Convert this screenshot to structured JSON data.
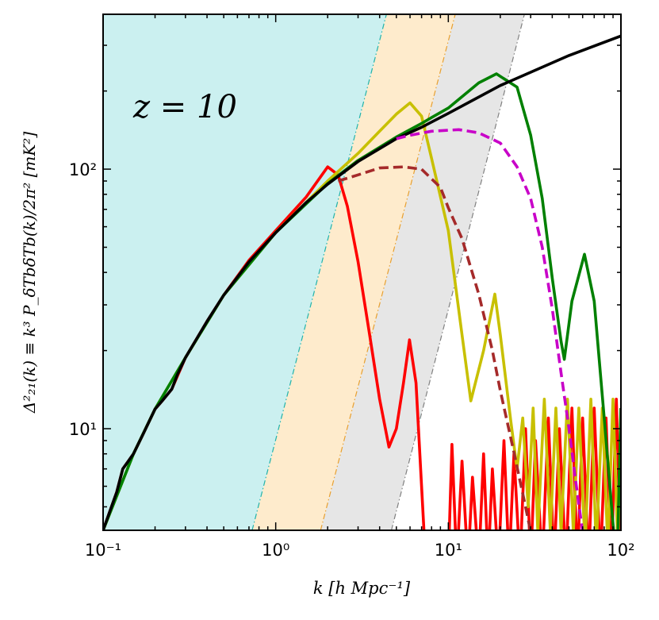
{
  "chart_data": {
    "type": "line",
    "annotation": "z = 10",
    "xlabel": "k [h Mpc⁻¹]",
    "ylabel": "Δ²₂₁(k) ≡ k³ P_δTbδTb(k)/2π² [mK²]",
    "xscale": "log",
    "yscale": "log",
    "xlim": [
      0.1,
      100
    ],
    "ylim": [
      4.06,
      395
    ],
    "xticks": [
      {
        "value": 0.1,
        "label": "10⁻¹"
      },
      {
        "value": 1,
        "label": "10⁰"
      },
      {
        "value": 10,
        "label": "10¹"
      },
      {
        "value": 100,
        "label": "10²"
      }
    ],
    "yticks": [
      {
        "value": 10,
        "label": "10¹"
      },
      {
        "value": 100,
        "label": "10²"
      }
    ],
    "xminor_ticks": [
      0.2,
      0.3,
      0.4,
      0.5,
      0.6,
      0.7,
      0.8,
      0.9,
      2,
      3,
      4,
      5,
      6,
      7,
      8,
      9,
      20,
      30,
      40,
      50,
      60,
      70,
      80,
      90
    ],
    "yminor_ticks": [
      5,
      6,
      7,
      8,
      9,
      20,
      30,
      40,
      50,
      60,
      70,
      80,
      90,
      200,
      300
    ],
    "shaded_regions": [
      {
        "color": "#cbf0f0",
        "edge_color": "#20b2aa",
        "edge_x": [
          0.73,
          4.38
        ]
      },
      {
        "color": "#feebcc",
        "edge_color": "#e8a030",
        "edge_x": [
          1.82,
          10.97
        ]
      },
      {
        "color": "#e6e6e6",
        "edge_color": "#808080",
        "edge_x": [
          4.68,
          27.6
        ]
      }
    ],
    "series": [
      {
        "color": "#ff0000",
        "style": "solid",
        "x": [
          0.1,
          0.12,
          0.13,
          0.14,
          0.15,
          0.17,
          0.2,
          0.22,
          0.25,
          0.3,
          0.4,
          0.5,
          0.7,
          1,
          1.5,
          2,
          2.3,
          2.6,
          3,
          3.5,
          4,
          4.53,
          5,
          5.5,
          5.96,
          6.5,
          7,
          7.4,
          10,
          10.5,
          11.2,
          12,
          13,
          13.8,
          15,
          16,
          17,
          18,
          19.5,
          21,
          22.5,
          24,
          26,
          28,
          30,
          32,
          35,
          38,
          41,
          44,
          48,
          52,
          56,
          60,
          65,
          70,
          76,
          82,
          88,
          94,
          100
        ],
        "values": [
          4.06,
          5.7,
          7.0,
          7.5,
          8.0,
          9.5,
          11.9,
          12.8,
          14.2,
          18.8,
          25.9,
          32.7,
          44.5,
          58,
          78,
          102,
          95,
          72,
          44,
          23,
          13,
          8.5,
          10,
          15,
          22,
          15,
          6,
          3,
          3,
          8.7,
          3,
          7.5,
          3,
          6.5,
          3,
          8,
          3,
          7,
          3,
          9,
          3,
          8,
          3,
          10,
          3,
          9,
          3,
          11,
          3,
          10,
          3,
          12,
          3,
          11,
          3,
          12,
          3,
          11,
          3,
          13,
          3
        ]
      },
      {
        "color": "#c8c000",
        "style": "solid",
        "x": [
          0.1,
          0.15,
          0.2,
          0.3,
          0.5,
          1,
          2,
          3,
          4,
          5,
          6,
          7,
          8,
          10,
          12,
          13.5,
          16,
          18.6,
          20,
          23,
          25,
          27,
          29,
          31,
          33,
          36,
          39,
          42,
          45,
          49,
          53,
          57,
          62,
          67,
          72,
          78,
          84,
          90,
          96,
          100
        ],
        "values": [
          4.06,
          8.0,
          11.9,
          18.8,
          32.7,
          57,
          90,
          115,
          140,
          163,
          180,
          160,
          110,
          58,
          23,
          12.8,
          20,
          33,
          23,
          10.7,
          7,
          11,
          5,
          12,
          4,
          13,
          4,
          12,
          4,
          13,
          4,
          12,
          3.5,
          13,
          3.5,
          12,
          3.5,
          13,
          3.5,
          12
        ]
      },
      {
        "color": "#008000",
        "style": "solid",
        "x": [
          0.1,
          0.15,
          0.2,
          0.3,
          0.5,
          1,
          2,
          3,
          5,
          7,
          8,
          10,
          15,
          19,
          25,
          30,
          35,
          40,
          45,
          47,
          52,
          61.5,
          70,
          80,
          90,
          95,
          100
        ],
        "values": [
          4.06,
          8.0,
          11.9,
          18.8,
          32.7,
          57,
          88,
          108,
          133,
          150,
          158,
          172,
          215,
          233,
          207,
          135,
          77,
          38,
          21.7,
          18.5,
          31,
          47,
          31,
          11,
          4.3,
          3,
          12
        ]
      },
      {
        "color": "#000000",
        "style": "solid",
        "x": [
          0.1,
          0.12,
          0.13,
          0.14,
          0.15,
          0.17,
          0.2,
          0.22,
          0.25,
          0.27,
          0.3,
          0.4,
          0.5,
          0.7,
          1,
          1.5,
          2,
          3,
          5,
          7,
          10,
          20,
          50,
          100
        ],
        "values": [
          4.06,
          5.7,
          7.0,
          7.5,
          8.0,
          9.5,
          11.9,
          12.8,
          14.2,
          16.2,
          18.8,
          25.9,
          32.7,
          43.9,
          56.9,
          74.3,
          87.5,
          107,
          131,
          145,
          164,
          210,
          274,
          326
        ]
      },
      {
        "color": "#c800c8",
        "style": "dashed",
        "x": [
          5,
          6,
          8,
          11.5,
          15,
          20,
          25,
          30,
          35,
          40,
          45,
          50,
          55,
          60
        ],
        "values": [
          131,
          135,
          140,
          142,
          138,
          126,
          102,
          77,
          50,
          29,
          16.4,
          10,
          6.1,
          4
        ]
      },
      {
        "color": "#a52a2a",
        "style": "dashed",
        "x": [
          2.3,
          3,
          4,
          5.5,
          7,
          9,
          10,
          12,
          15,
          18,
          20,
          24,
          28,
          30
        ],
        "values": [
          90,
          95,
          101,
          102,
          100,
          85,
          71,
          54,
          33,
          20,
          14,
          8.1,
          5,
          4
        ]
      }
    ]
  }
}
